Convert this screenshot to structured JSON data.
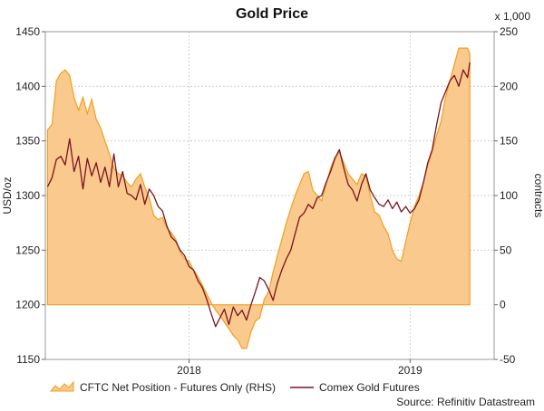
{
  "chart_data": {
    "type": "line",
    "title": "Gold Price",
    "ylabel": "USD/oz",
    "ylabel_right": "contracts",
    "right_multiplier": "x 1,000",
    "ylim": [
      1150,
      1450
    ],
    "ylim_right": [
      -50,
      250
    ],
    "y_ticks": [
      1150,
      1200,
      1250,
      1300,
      1350,
      1400,
      1450
    ],
    "y_ticks_right": [
      -50,
      0,
      50,
      100,
      150,
      200,
      250
    ],
    "x_ticks": [
      {
        "label": "2018",
        "x": 2018.0
      },
      {
        "label": "2019",
        "x": 2019.0
      }
    ],
    "xlim": [
      2017.35,
      2019.38
    ],
    "grid": true,
    "legend_position": "bottom",
    "source": "Source: Refinitiv Datastream",
    "colors": {
      "area_fill": "#f9c98d",
      "area_edge": "#f0a020",
      "line": "#7a1420"
    },
    "series": [
      {
        "name": "CFTC Net Position - Futures Only (RHS)",
        "kind": "area",
        "axis": "right",
        "points": [
          [
            2017.36,
            160
          ],
          [
            2017.38,
            165
          ],
          [
            2017.4,
            205
          ],
          [
            2017.42,
            212
          ],
          [
            2017.44,
            215
          ],
          [
            2017.46,
            210
          ],
          [
            2017.48,
            190
          ],
          [
            2017.5,
            178
          ],
          [
            2017.52,
            190
          ],
          [
            2017.54,
            175
          ],
          [
            2017.56,
            188
          ],
          [
            2017.58,
            170
          ],
          [
            2017.6,
            162
          ],
          [
            2017.62,
            150
          ],
          [
            2017.64,
            138
          ],
          [
            2017.66,
            125
          ],
          [
            2017.68,
            120
          ],
          [
            2017.7,
            118
          ],
          [
            2017.72,
            112
          ],
          [
            2017.74,
            108
          ],
          [
            2017.76,
            115
          ],
          [
            2017.78,
            120
          ],
          [
            2017.8,
            108
          ],
          [
            2017.82,
            98
          ],
          [
            2017.84,
            82
          ],
          [
            2017.86,
            78
          ],
          [
            2017.88,
            80
          ],
          [
            2017.9,
            70
          ],
          [
            2017.92,
            66
          ],
          [
            2017.94,
            60
          ],
          [
            2017.96,
            48
          ],
          [
            2017.98,
            42
          ],
          [
            2018.0,
            40
          ],
          [
            2018.02,
            32
          ],
          [
            2018.04,
            26
          ],
          [
            2018.06,
            18
          ],
          [
            2018.08,
            10
          ],
          [
            2018.1,
            2
          ],
          [
            2018.12,
            -5
          ],
          [
            2018.14,
            -10
          ],
          [
            2018.16,
            -16
          ],
          [
            2018.18,
            -22
          ],
          [
            2018.2,
            -28
          ],
          [
            2018.22,
            -32
          ],
          [
            2018.24,
            -40
          ],
          [
            2018.26,
            -40
          ],
          [
            2018.28,
            -25
          ],
          [
            2018.3,
            -15
          ],
          [
            2018.32,
            -12
          ],
          [
            2018.34,
            5
          ],
          [
            2018.36,
            12
          ],
          [
            2018.38,
            30
          ],
          [
            2018.4,
            45
          ],
          [
            2018.42,
            60
          ],
          [
            2018.44,
            75
          ],
          [
            2018.46,
            88
          ],
          [
            2018.48,
            100
          ],
          [
            2018.5,
            110
          ],
          [
            2018.52,
            120
          ],
          [
            2018.54,
            122
          ],
          [
            2018.56,
            105
          ],
          [
            2018.58,
            100
          ],
          [
            2018.6,
            95
          ],
          [
            2018.62,
            110
          ],
          [
            2018.64,
            125
          ],
          [
            2018.66,
            135
          ],
          [
            2018.68,
            140
          ],
          [
            2018.7,
            130
          ],
          [
            2018.72,
            120
          ],
          [
            2018.74,
            115
          ],
          [
            2018.76,
            110
          ],
          [
            2018.78,
            120
          ],
          [
            2018.8,
            118
          ],
          [
            2018.82,
            100
          ],
          [
            2018.84,
            85
          ],
          [
            2018.86,
            82
          ],
          [
            2018.88,
            72
          ],
          [
            2018.9,
            65
          ],
          [
            2018.92,
            50
          ],
          [
            2018.94,
            42
          ],
          [
            2018.96,
            40
          ],
          [
            2018.98,
            58
          ],
          [
            2019.0,
            75
          ],
          [
            2019.02,
            90
          ],
          [
            2019.04,
            100
          ],
          [
            2019.06,
            112
          ],
          [
            2019.08,
            128
          ],
          [
            2019.1,
            140
          ],
          [
            2019.12,
            155
          ],
          [
            2019.14,
            168
          ],
          [
            2019.16,
            190
          ],
          [
            2019.18,
            205
          ],
          [
            2019.2,
            220
          ],
          [
            2019.22,
            235
          ],
          [
            2019.26,
            235
          ],
          [
            2019.27,
            230
          ]
        ]
      },
      {
        "name": "Comex Gold Futures",
        "kind": "line",
        "axis": "left",
        "points": [
          [
            2017.36,
            1308
          ],
          [
            2017.38,
            1316
          ],
          [
            2017.4,
            1333
          ],
          [
            2017.42,
            1336
          ],
          [
            2017.44,
            1328
          ],
          [
            2017.46,
            1352
          ],
          [
            2017.48,
            1322
          ],
          [
            2017.5,
            1336
          ],
          [
            2017.52,
            1306
          ],
          [
            2017.54,
            1334
          ],
          [
            2017.56,
            1318
          ],
          [
            2017.58,
            1330
          ],
          [
            2017.6,
            1312
          ],
          [
            2017.62,
            1326
          ],
          [
            2017.64,
            1308
          ],
          [
            2017.66,
            1338
          ],
          [
            2017.68,
            1308
          ],
          [
            2017.7,
            1322
          ],
          [
            2017.72,
            1302
          ],
          [
            2017.74,
            1300
          ],
          [
            2017.76,
            1296
          ],
          [
            2017.78,
            1310
          ],
          [
            2017.8,
            1292
          ],
          [
            2017.82,
            1306
          ],
          [
            2017.84,
            1300
          ],
          [
            2017.86,
            1290
          ],
          [
            2017.88,
            1286
          ],
          [
            2017.9,
            1272
          ],
          [
            2017.92,
            1262
          ],
          [
            2017.94,
            1258
          ],
          [
            2017.96,
            1250
          ],
          [
            2017.98,
            1245
          ],
          [
            2018.0,
            1235
          ],
          [
            2018.02,
            1232
          ],
          [
            2018.04,
            1222
          ],
          [
            2018.06,
            1216
          ],
          [
            2018.08,
            1205
          ],
          [
            2018.1,
            1192
          ],
          [
            2018.12,
            1180
          ],
          [
            2018.14,
            1188
          ],
          [
            2018.16,
            1196
          ],
          [
            2018.18,
            1182
          ],
          [
            2018.2,
            1198
          ],
          [
            2018.22,
            1190
          ],
          [
            2018.24,
            1195
          ],
          [
            2018.26,
            1186
          ],
          [
            2018.28,
            1200
          ],
          [
            2018.3,
            1212
          ],
          [
            2018.32,
            1225
          ],
          [
            2018.34,
            1222
          ],
          [
            2018.36,
            1214
          ],
          [
            2018.38,
            1204
          ],
          [
            2018.4,
            1220
          ],
          [
            2018.42,
            1232
          ],
          [
            2018.44,
            1242
          ],
          [
            2018.46,
            1250
          ],
          [
            2018.48,
            1265
          ],
          [
            2018.5,
            1280
          ],
          [
            2018.52,
            1284
          ],
          [
            2018.54,
            1292
          ],
          [
            2018.56,
            1288
          ],
          [
            2018.58,
            1298
          ],
          [
            2018.6,
            1300
          ],
          [
            2018.62,
            1312
          ],
          [
            2018.64,
            1322
          ],
          [
            2018.66,
            1334
          ],
          [
            2018.68,
            1342
          ],
          [
            2018.7,
            1325
          ],
          [
            2018.72,
            1310
          ],
          [
            2018.74,
            1305
          ],
          [
            2018.76,
            1295
          ],
          [
            2018.78,
            1310
          ],
          [
            2018.8,
            1320
          ],
          [
            2018.82,
            1305
          ],
          [
            2018.84,
            1298
          ],
          [
            2018.86,
            1292
          ],
          [
            2018.88,
            1290
          ],
          [
            2018.9,
            1296
          ],
          [
            2018.92,
            1288
          ],
          [
            2018.94,
            1294
          ],
          [
            2018.96,
            1285
          ],
          [
            2018.98,
            1290
          ],
          [
            2019.0,
            1284
          ],
          [
            2019.02,
            1288
          ],
          [
            2019.04,
            1296
          ],
          [
            2019.06,
            1312
          ],
          [
            2019.08,
            1330
          ],
          [
            2019.1,
            1342
          ],
          [
            2019.12,
            1365
          ],
          [
            2019.14,
            1385
          ],
          [
            2019.16,
            1395
          ],
          [
            2019.18,
            1405
          ],
          [
            2019.2,
            1410
          ],
          [
            2019.22,
            1400
          ],
          [
            2019.24,
            1415
          ],
          [
            2019.26,
            1408
          ],
          [
            2019.27,
            1422
          ]
        ]
      }
    ]
  }
}
